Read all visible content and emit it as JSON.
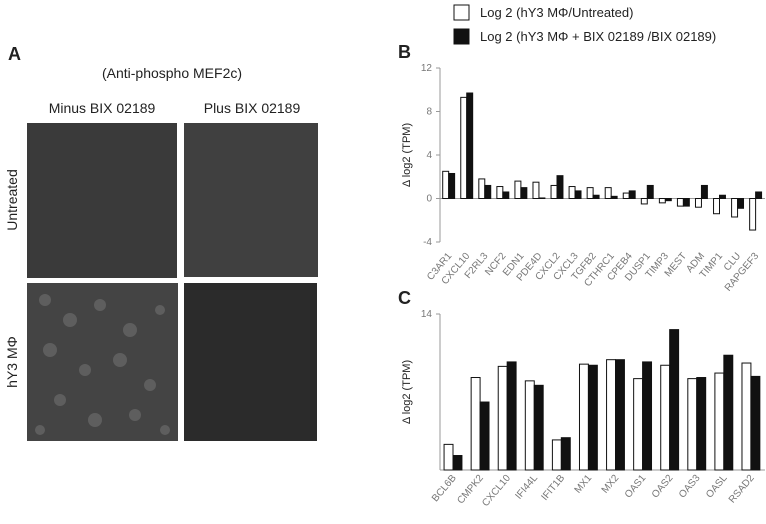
{
  "panel_a": {
    "label": "A",
    "subtitle": "(Anti-phospho MEF2c)",
    "columns": [
      "Minus BIX 02189",
      "Plus BIX 02189"
    ],
    "rows": [
      "Untreated",
      "hY3 MΦ"
    ]
  },
  "chart_data": [
    {
      "type": "bar",
      "panel_label": "B",
      "y_label": "Δ log2 (TPM)",
      "categories": [
        "C3AR1",
        "CXCL10",
        "F2RL3",
        "NCF2",
        "EDN1",
        "PDE4D",
        "CXCL2",
        "CXCL3",
        "TGFB2",
        "CTHRC1",
        "CPEB4",
        "DUSP1",
        "TIMP3",
        "MEST",
        "ADM",
        "TIMP1",
        "CLU",
        "RAPGEF3"
      ],
      "series": [
        {
          "name": "Log 2 (hY3 MΦ/Untreated)",
          "color": "#ffffff",
          "values": [
            2.5,
            9.3,
            1.8,
            1.1,
            1.6,
            1.5,
            1.2,
            1.1,
            1.0,
            1.0,
            0.5,
            -0.5,
            -0.4,
            -0.7,
            -0.8,
            -1.4,
            -1.7,
            -2.9
          ]
        },
        {
          "name": "Log 2 (hY3 MΦ + BIX 02189 /BIX 02189)",
          "color": "#111111",
          "values": [
            2.3,
            9.7,
            1.2,
            0.6,
            1.0,
            0.05,
            2.1,
            0.7,
            0.3,
            0.2,
            0.7,
            1.2,
            -0.2,
            -0.7,
            1.2,
            0.3,
            -0.9,
            0.6
          ]
        }
      ],
      "ylim": [
        -4,
        12
      ],
      "yticks": [
        -4,
        0,
        4,
        8,
        12
      ]
    },
    {
      "type": "bar",
      "panel_label": "C",
      "y_label": "Δ log2 (TPM)",
      "categories": [
        "BCL6B",
        "CMPK2",
        "CXCL10",
        "IFI44L",
        "IFIT1B",
        "MX1",
        "MX2",
        "OAS1",
        "OAS2",
        "OAS3",
        "OASL",
        "RSAD2"
      ],
      "series": [
        {
          "color": "#ffffff",
          "values": [
            2.3,
            8.3,
            9.3,
            8.0,
            2.7,
            9.5,
            9.9,
            8.2,
            9.4,
            8.2,
            8.7,
            9.6
          ]
        },
        {
          "color": "#111111",
          "values": [
            1.3,
            6.1,
            9.7,
            7.6,
            2.9,
            9.4,
            9.9,
            9.7,
            12.6,
            8.3,
            10.3,
            8.4
          ]
        }
      ],
      "ylim": [
        0,
        14
      ],
      "yticks": [
        14
      ]
    }
  ]
}
